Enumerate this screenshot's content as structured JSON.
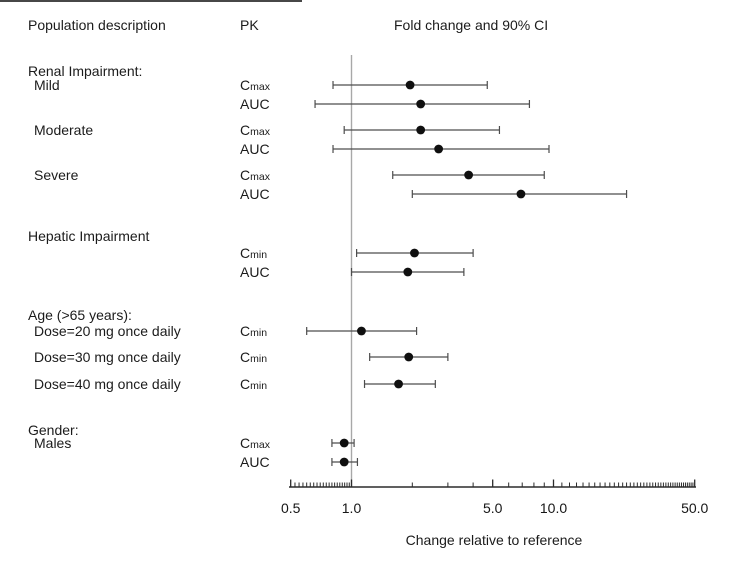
{
  "header": {
    "population_col": "Population description",
    "pk_col": "PK",
    "value_col": "Fold change and 90% CI"
  },
  "chart_data": {
    "type": "scatter",
    "subtype": "forest-plot",
    "title": "Fold change and 90% CI",
    "xlabel": "Change relative to reference",
    "xscale": "log",
    "xlim": [
      0.5,
      50
    ],
    "reference_line": 1.0,
    "x_ticks": [
      0.5,
      1.0,
      5.0,
      10.0,
      50.0
    ],
    "x_tick_labels": [
      "0.5",
      "1.0",
      "5.0",
      "10.0",
      "50.0"
    ],
    "ci_level": "90%",
    "sections": [
      {
        "heading": "Renal Impairment:",
        "rows": [
          {
            "label": "Mild",
            "pk_base": "C",
            "pk_sub": "max",
            "est": 1.95,
            "lo": 0.81,
            "hi": 4.7
          },
          {
            "label": "",
            "pk_base": "AUC",
            "pk_sub": "",
            "est": 2.2,
            "lo": 0.66,
            "hi": 7.6
          },
          {
            "label": "Moderate",
            "pk_base": "C",
            "pk_sub": "max",
            "est": 2.2,
            "lo": 0.92,
            "hi": 5.4
          },
          {
            "label": "",
            "pk_base": "AUC",
            "pk_sub": "",
            "est": 2.7,
            "lo": 0.81,
            "hi": 9.5
          },
          {
            "label": "Severe",
            "pk_base": "C",
            "pk_sub": "max",
            "est": 3.8,
            "lo": 1.6,
            "hi": 9.0
          },
          {
            "label": "",
            "pk_base": "AUC",
            "pk_sub": "",
            "est": 6.9,
            "lo": 2.0,
            "hi": 23.0
          }
        ]
      },
      {
        "heading": "Hepatic Impairment",
        "rows": [
          {
            "label": "",
            "pk_base": "C",
            "pk_sub": "min",
            "est": 2.05,
            "lo": 1.06,
            "hi": 4.0
          },
          {
            "label": "",
            "pk_base": "AUC",
            "pk_sub": "",
            "est": 1.9,
            "lo": 1.0,
            "hi": 3.6
          }
        ]
      },
      {
        "heading": "Age (>65 years):",
        "rows": [
          {
            "label": "Dose=20 mg once daily",
            "pk_base": "C",
            "pk_sub": "min",
            "est": 1.12,
            "lo": 0.6,
            "hi": 2.1
          },
          {
            "label": "Dose=30 mg once daily",
            "pk_base": "C",
            "pk_sub": "min",
            "est": 1.92,
            "lo": 1.23,
            "hi": 3.0
          },
          {
            "label": "Dose=40 mg once daily",
            "pk_base": "C",
            "pk_sub": "min",
            "est": 1.71,
            "lo": 1.16,
            "hi": 2.6
          }
        ]
      },
      {
        "heading": "Gender:",
        "rows": [
          {
            "label": "Males",
            "pk_base": "C",
            "pk_sub": "max",
            "est": 0.92,
            "lo": 0.8,
            "hi": 1.03
          },
          {
            "label": "",
            "pk_base": "AUC",
            "pk_sub": "",
            "est": 0.92,
            "lo": 0.8,
            "hi": 1.07
          }
        ]
      }
    ]
  },
  "colors": {
    "text": "#1b1b1b",
    "axis": "#2b2b2b",
    "error_bar": "#4d4d4d",
    "point": "#0f0f0f",
    "reference_line": "#a8a8a8"
  }
}
